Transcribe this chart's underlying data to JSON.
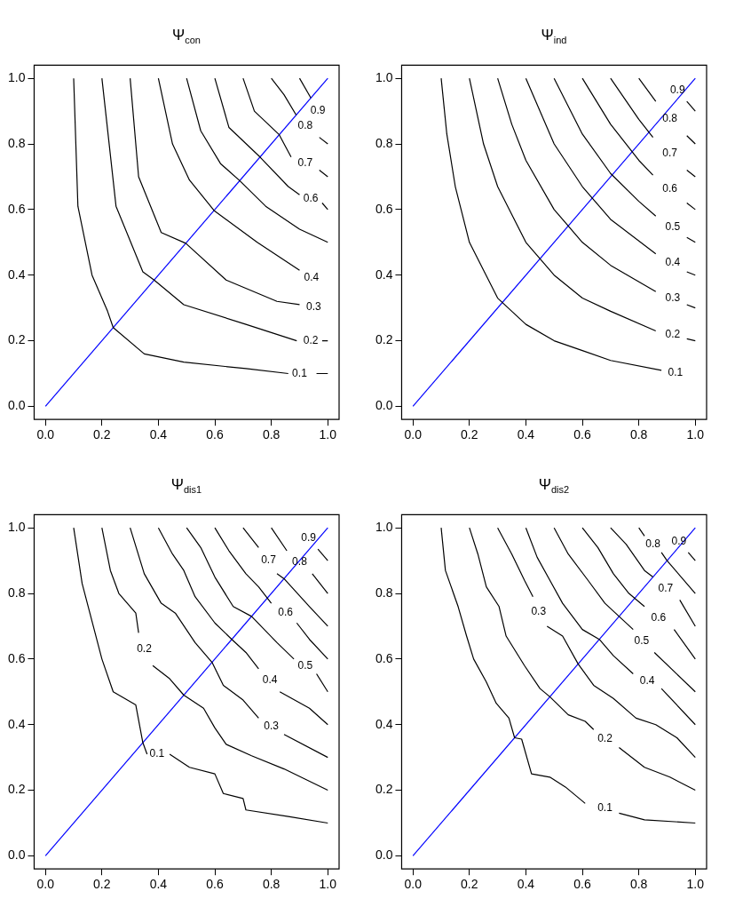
{
  "chart_data": [
    {
      "type": "line",
      "title": "Ψ$_{con}$",
      "xlim": [
        -0.04,
        1.04
      ],
      "ylim": [
        -0.04,
        1.04
      ],
      "xticks": [
        {
          "value": 0,
          "label": "0.0"
        },
        {
          "value": 0.2,
          "label": "0.2"
        },
        {
          "value": 0.4,
          "label": "0.4"
        },
        {
          "value": 0.6,
          "label": "0.6"
        },
        {
          "value": 0.8,
          "label": "0.8"
        },
        {
          "value": 1,
          "label": "1.0"
        }
      ],
      "yticks": [
        {
          "value": 0,
          "label": "0.0"
        },
        {
          "value": 0.2,
          "label": "0.2"
        },
        {
          "value": 0.4,
          "label": "0.4"
        },
        {
          "value": 0.6,
          "label": "0.6"
        },
        {
          "value": 0.8,
          "label": "0.8"
        },
        {
          "value": 1,
          "label": "1.0"
        }
      ],
      "grid": false,
      "legend": false,
      "marker": "none",
      "series": [
        {
          "name": "0.1",
          "color": "#000000",
          "x": [
            0.1,
            0.115,
            0.165,
            0.22,
            0.24,
            0.35,
            0.49,
            0.71,
            0.86,
            0.9,
            0.96,
            1
          ],
          "values": [
            1,
            0.61,
            0.4,
            0.29,
            0.24,
            0.16,
            0.135,
            0.115,
            0.1,
            null,
            0.1,
            0.1
          ]
        },
        {
          "name": "0.2",
          "color": "#000000",
          "x": [
            0.2,
            0.25,
            0.345,
            0.385,
            0.49,
            0.71,
            0.89,
            0.94,
            0.98,
            1
          ],
          "values": [
            1,
            0.61,
            0.41,
            0.385,
            0.31,
            0.25,
            0.2,
            null,
            0.2,
            0.2
          ]
        },
        {
          "name": "0.3",
          "color": "#000000",
          "x": [
            0.3,
            0.33,
            0.41,
            0.497,
            0.64,
            0.82,
            0.9
          ],
          "values": [
            1,
            0.7,
            0.53,
            0.497,
            0.385,
            0.32,
            0.31
          ]
        },
        {
          "name": "0.4",
          "color": "#000000",
          "x": [
            0.4,
            0.45,
            0.51,
            0.597,
            0.75,
            0.9
          ],
          "values": [
            1,
            0.8,
            0.69,
            0.597,
            0.5,
            0.415
          ]
        },
        {
          "color": "#000000",
          "x": [
            0.5,
            0.55,
            0.62,
            0.688,
            0.78,
            0.9,
            1
          ],
          "values": [
            1,
            0.84,
            0.74,
            0.688,
            0.61,
            0.54,
            0.5
          ]
        },
        {
          "name": "0.6",
          "color": "#000000",
          "x": [
            0.6,
            0.65,
            0.76,
            0.86,
            0.9,
            0.94,
            0.98,
            1
          ],
          "values": [
            1,
            0.85,
            0.76,
            0.67,
            0.645,
            null,
            0.62,
            0.6
          ]
        },
        {
          "name": "0.7",
          "color": "#000000",
          "x": [
            0.7,
            0.74,
            0.828,
            0.87,
            0.92,
            0.97,
            1
          ],
          "values": [
            1,
            0.9,
            0.828,
            0.76,
            null,
            0.72,
            0.7
          ]
        },
        {
          "name": "0.8",
          "color": "#000000",
          "x": [
            0.8,
            0.845,
            0.888,
            0.92,
            0.97,
            1
          ],
          "values": [
            1,
            0.95,
            0.888,
            null,
            0.82,
            0.8
          ]
        },
        {
          "name": "0.9",
          "color": "#000000",
          "x": [
            0.9,
            0.94
          ],
          "values": [
            1,
            0.94
          ]
        },
        {
          "color": "#0000ff",
          "x": [
            0,
            1
          ],
          "values": [
            0,
            1
          ]
        }
      ]
    },
    {
      "type": "line",
      "title": "Ψ$_{ind}$",
      "xlim": [
        -0.04,
        1.04
      ],
      "ylim": [
        -0.04,
        1.04
      ],
      "xticks": [
        {
          "value": 0,
          "label": "0.0"
        },
        {
          "value": 0.2,
          "label": "0.2"
        },
        {
          "value": 0.4,
          "label": "0.4"
        },
        {
          "value": 0.6,
          "label": "0.6"
        },
        {
          "value": 0.8,
          "label": "0.8"
        },
        {
          "value": 1,
          "label": "1.0"
        }
      ],
      "yticks": [
        {
          "value": 0,
          "label": "0.0"
        },
        {
          "value": 0.2,
          "label": "0.2"
        },
        {
          "value": 0.4,
          "label": "0.4"
        },
        {
          "value": 0.6,
          "label": "0.6"
        },
        {
          "value": 0.8,
          "label": "0.8"
        },
        {
          "value": 1,
          "label": "1.0"
        }
      ],
      "grid": false,
      "legend": false,
      "marker": "none",
      "series": [
        {
          "name": "0.1",
          "color": "#000000",
          "x": [
            0.1,
            0.12,
            0.15,
            0.2,
            0.3,
            0.4,
            0.5,
            0.6,
            0.7,
            0.88
          ],
          "values": [
            1,
            0.83,
            0.67,
            0.5,
            0.33,
            0.25,
            0.2,
            0.17,
            0.14,
            0.11
          ]
        },
        {
          "name": "0.2",
          "color": "#000000",
          "x": [
            0.2,
            0.25,
            0.3,
            0.4,
            0.5,
            0.6,
            0.7,
            0.86,
            0.92,
            0.97,
            1
          ],
          "values": [
            1,
            0.8,
            0.67,
            0.5,
            0.4,
            0.33,
            0.29,
            0.23,
            null,
            0.206,
            0.2
          ]
        },
        {
          "name": "0.3",
          "color": "#000000",
          "x": [
            0.3,
            0.35,
            0.4,
            0.5,
            0.6,
            0.7,
            0.86,
            0.92,
            0.97,
            1
          ],
          "values": [
            1,
            0.86,
            0.75,
            0.6,
            0.5,
            0.43,
            0.35,
            null,
            0.31,
            0.3
          ]
        },
        {
          "name": "0.4",
          "color": "#000000",
          "x": [
            0.4,
            0.5,
            0.6,
            0.7,
            0.86,
            0.92,
            0.97,
            1
          ],
          "values": [
            1,
            0.8,
            0.67,
            0.57,
            0.465,
            null,
            0.41,
            0.4
          ]
        },
        {
          "name": "0.5",
          "color": "#000000",
          "x": [
            0.5,
            0.6,
            0.7,
            0.8,
            0.86,
            0.92,
            0.97,
            1
          ],
          "values": [
            1,
            0.83,
            0.71,
            0.625,
            0.58,
            null,
            0.515,
            0.5
          ]
        },
        {
          "name": "0.6",
          "color": "#000000",
          "x": [
            0.6,
            0.7,
            0.8,
            0.85,
            0.91,
            0.97,
            1
          ],
          "values": [
            1,
            0.86,
            0.75,
            0.705,
            null,
            0.62,
            0.6
          ]
        },
        {
          "name": "0.7",
          "color": "#000000",
          "x": [
            0.7,
            0.8,
            0.85,
            0.91,
            0.97,
            1
          ],
          "values": [
            1,
            0.875,
            0.82,
            null,
            0.72,
            0.7
          ]
        },
        {
          "name": "0.8",
          "color": "#000000",
          "x": [
            0.8,
            0.86,
            0.91,
            0.97,
            1
          ],
          "values": [
            1,
            0.93,
            null,
            0.825,
            0.8
          ]
        },
        {
          "name": "0.9",
          "color": "#000000",
          "x": [
            0.97,
            1
          ],
          "values": [
            0.93,
            0.9
          ]
        },
        {
          "color": "#0000ff",
          "x": [
            0,
            1
          ],
          "values": [
            0,
            1
          ]
        }
      ]
    },
    {
      "type": "line",
      "title": "Ψ$_{dis1}$",
      "xlim": [
        -0.04,
        1.04
      ],
      "ylim": [
        -0.04,
        1.04
      ],
      "xticks": [
        {
          "value": 0,
          "label": "0.0"
        },
        {
          "value": 0.2,
          "label": "0.2"
        },
        {
          "value": 0.4,
          "label": "0.4"
        },
        {
          "value": 0.6,
          "label": "0.6"
        },
        {
          "value": 0.8,
          "label": "0.8"
        },
        {
          "value": 1,
          "label": "1.0"
        }
      ],
      "yticks": [
        {
          "value": 0,
          "label": "0.0"
        },
        {
          "value": 0.2,
          "label": "0.2"
        },
        {
          "value": 0.4,
          "label": "0.4"
        },
        {
          "value": 0.6,
          "label": "0.6"
        },
        {
          "value": 0.8,
          "label": "0.8"
        },
        {
          "value": 1,
          "label": "1.0"
        }
      ],
      "grid": false,
      "legend": false,
      "marker": "none",
      "series": [
        {
          "name": "0.1",
          "color": "#000000",
          "x": [
            0.1,
            0.13,
            0.2,
            0.24,
            0.32,
            0.345,
            0.36,
            0.395,
            0.44,
            0.51,
            0.6,
            0.63,
            0.7,
            0.71,
            0.86,
            1
          ],
          "values": [
            1,
            0.83,
            0.6,
            0.5,
            0.46,
            0.345,
            0.31,
            null,
            0.31,
            0.27,
            0.25,
            0.19,
            0.175,
            0.14,
            0.12,
            0.1
          ]
        },
        {
          "name": "0.2",
          "color": "#000000",
          "x": [
            0.2,
            0.23,
            0.26,
            0.32,
            0.33,
            0.35,
            0.38,
            0.44,
            0.49,
            0.56,
            0.6,
            0.64,
            0.73,
            0.845,
            1
          ],
          "values": [
            1,
            0.87,
            0.8,
            0.74,
            0.68,
            null,
            0.58,
            0.54,
            0.49,
            0.45,
            0.39,
            0.34,
            0.305,
            0.265,
            0.2
          ]
        },
        {
          "name": "0.3",
          "color": "#000000",
          "x": [
            0.3,
            0.35,
            0.41,
            0.46,
            0.53,
            0.59,
            0.63,
            0.7,
            0.755,
            0.8,
            0.845,
            1
          ],
          "values": [
            1,
            0.86,
            0.77,
            0.74,
            0.65,
            0.59,
            0.52,
            0.475,
            0.42,
            null,
            0.37,
            0.3
          ]
        },
        {
          "name": "0.4",
          "color": "#000000",
          "x": [
            0.4,
            0.45,
            0.49,
            0.53,
            0.6,
            0.66,
            0.71,
            0.755,
            0.795,
            0.83,
            0.935,
            1
          ],
          "values": [
            1,
            0.92,
            0.87,
            0.79,
            0.71,
            0.66,
            0.62,
            0.57,
            null,
            0.5,
            0.45,
            0.4
          ]
        },
        {
          "name": "0.5",
          "color": "#000000",
          "x": [
            0.5,
            0.55,
            0.6,
            0.665,
            0.73,
            0.82,
            0.88,
            0.92,
            0.96,
            1
          ],
          "values": [
            1,
            0.94,
            0.85,
            0.76,
            0.73,
            0.65,
            0.6,
            null,
            0.555,
            0.5
          ]
        },
        {
          "name": "0.6",
          "color": "#000000",
          "x": [
            0.6,
            0.65,
            0.71,
            0.755,
            0.8,
            0.85,
            0.89,
            0.935,
            1
          ],
          "values": [
            1,
            0.93,
            0.86,
            0.82,
            0.77,
            null,
            0.71,
            0.66,
            0.6
          ]
        },
        {
          "name": "0.7",
          "color": "#000000",
          "x": [
            0.7,
            0.755,
            0.79,
            0.82,
            0.845,
            0.935,
            1
          ],
          "values": [
            1,
            0.94,
            null,
            0.86,
            0.845,
            0.76,
            0.7
          ]
        },
        {
          "name": "0.8",
          "color": "#000000",
          "x": [
            0.8,
            0.855,
            0.9,
            0.945,
            1
          ],
          "values": [
            1,
            0.93,
            null,
            0.86,
            0.8
          ]
        },
        {
          "name": "0.9",
          "color": "#000000",
          "x": [
            0.965,
            1
          ],
          "values": [
            0.935,
            0.9
          ]
        },
        {
          "color": "#0000ff",
          "x": [
            0,
            1
          ],
          "values": [
            0,
            1
          ]
        }
      ]
    },
    {
      "type": "line",
      "title": "Ψ$_{dis2}$",
      "xlim": [
        -0.04,
        1.04
      ],
      "ylim": [
        -0.04,
        1.04
      ],
      "xticks": [
        {
          "value": 0,
          "label": "0.0"
        },
        {
          "value": 0.2,
          "label": "0.2"
        },
        {
          "value": 0.4,
          "label": "0.4"
        },
        {
          "value": 0.6,
          "label": "0.6"
        },
        {
          "value": 0.8,
          "label": "0.8"
        },
        {
          "value": 1,
          "label": "1.0"
        }
      ],
      "yticks": [
        {
          "value": 0,
          "label": "0.0"
        },
        {
          "value": 0.2,
          "label": "0.2"
        },
        {
          "value": 0.4,
          "label": "0.4"
        },
        {
          "value": 0.6,
          "label": "0.6"
        },
        {
          "value": 0.8,
          "label": "0.8"
        },
        {
          "value": 1,
          "label": "1.0"
        }
      ],
      "grid": false,
      "legend": false,
      "marker": "none",
      "series": [
        {
          "name": "0.1",
          "color": "#000000",
          "x": [
            0.1,
            0.115,
            0.16,
            0.19,
            0.215,
            0.26,
            0.295,
            0.34,
            0.36,
            0.385,
            0.42,
            0.485,
            0.54,
            0.61,
            0.68,
            0.73,
            0.82,
            1
          ],
          "values": [
            1,
            0.87,
            0.76,
            0.67,
            0.6,
            0.53,
            0.465,
            0.42,
            0.36,
            0.356,
            0.25,
            0.24,
            0.21,
            0.16,
            null,
            0.13,
            0.11,
            0.1
          ]
        },
        {
          "name": "0.2",
          "color": "#000000",
          "x": [
            0.2,
            0.23,
            0.26,
            0.305,
            0.33,
            0.395,
            0.45,
            0.485,
            0.55,
            0.61,
            0.64,
            0.68,
            0.73,
            0.82,
            0.91,
            1
          ],
          "values": [
            1,
            0.92,
            0.82,
            0.76,
            0.67,
            0.58,
            0.51,
            0.485,
            0.43,
            0.41,
            0.385,
            null,
            0.33,
            0.27,
            0.24,
            0.2
          ]
        },
        {
          "name": "0.3",
          "color": "#000000",
          "x": [
            0.3,
            0.35,
            0.395,
            0.425,
            0.445,
            0.475,
            0.53,
            0.585,
            0.64,
            0.71,
            0.79,
            0.86,
            0.935,
            1
          ],
          "values": [
            1,
            0.92,
            0.84,
            0.79,
            null,
            0.7,
            0.67,
            0.585,
            0.52,
            0.48,
            0.42,
            0.4,
            0.36,
            0.3
          ]
        },
        {
          "name": "0.4",
          "color": "#000000",
          "x": [
            0.4,
            0.44,
            0.485,
            0.53,
            0.6,
            0.66,
            0.71,
            0.78,
            0.83,
            0.88,
            1
          ],
          "values": [
            1,
            0.91,
            0.84,
            0.77,
            0.69,
            0.66,
            0.61,
            0.555,
            null,
            0.51,
            0.4
          ]
        },
        {
          "name": "0.5",
          "color": "#000000",
          "x": [
            0.5,
            0.55,
            0.62,
            0.68,
            0.73,
            0.78,
            0.81,
            0.855,
            1
          ],
          "values": [
            1,
            0.92,
            0.84,
            0.77,
            0.73,
            0.69,
            null,
            0.62,
            0.5
          ]
        },
        {
          "name": "0.6",
          "color": "#000000",
          "x": [
            0.6,
            0.655,
            0.71,
            0.765,
            0.82,
            0.87,
            0.925,
            1
          ],
          "values": [
            1,
            0.94,
            0.86,
            0.8,
            0.76,
            null,
            0.69,
            0.6
          ]
        },
        {
          "name": "0.7",
          "color": "#000000",
          "x": [
            0.7,
            0.755,
            0.82,
            0.85,
            0.895,
            0.945,
            1
          ],
          "values": [
            1,
            0.95,
            0.87,
            0.85,
            null,
            0.78,
            0.7
          ]
        },
        {
          "name": "0.8",
          "color": "#000000",
          "x": [
            0.8,
            0.82,
            0.85,
            0.88,
            0.9,
            1
          ],
          "values": [
            1,
            0.975,
            null,
            0.925,
            0.9,
            0.8
          ]
        },
        {
          "name": "0.9",
          "color": "#000000",
          "x": [
            0.975,
            1
          ],
          "values": [
            0.925,
            0.9
          ]
        },
        {
          "color": "#0000ff",
          "x": [
            0,
            1
          ],
          "values": [
            0,
            1
          ]
        }
      ]
    }
  ]
}
